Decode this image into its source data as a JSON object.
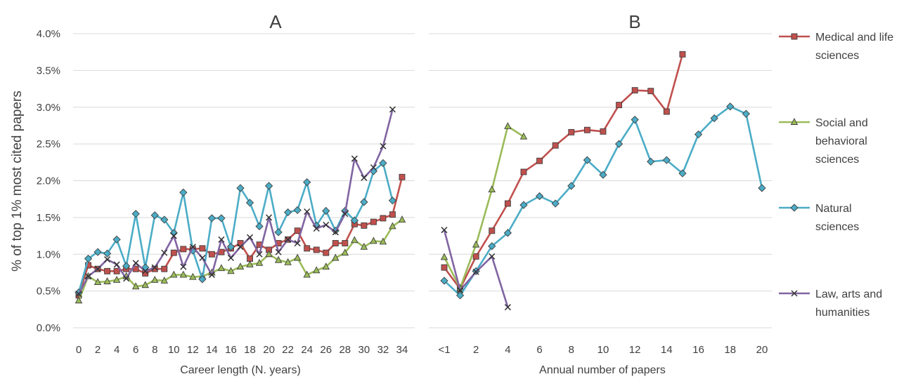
{
  "y_axis_label": "% of top 1% most cited papers",
  "y_ticks": [
    "0.0%",
    "0.5%",
    "1.0%",
    "1.5%",
    "2.0%",
    "2.5%",
    "3.0%",
    "3.5%",
    "4.0%"
  ],
  "legend": [
    {
      "lines": [
        "Medical and life",
        "sciences"
      ]
    },
    {
      "lines": [
        "Social and",
        "behavioral",
        "sciences"
      ]
    },
    {
      "lines": [
        "Natural",
        "sciences"
      ]
    },
    {
      "lines": [
        "Law, arts and",
        "humanities"
      ]
    }
  ],
  "chart_data": [
    {
      "type": "line",
      "title": "A",
      "xlabel": "Career length (N. years)",
      "ylabel": "% of top 1% most cited papers",
      "ylim": [
        0,
        4
      ],
      "xlim": [
        0,
        34
      ],
      "x_tick_labels": [
        "0",
        "2",
        "4",
        "6",
        "8",
        "10",
        "12",
        "14",
        "16",
        "18",
        "20",
        "22",
        "24",
        "26",
        "28",
        "30",
        "32",
        "34"
      ],
      "x": [
        0,
        1,
        2,
        3,
        4,
        5,
        6,
        7,
        8,
        9,
        10,
        11,
        12,
        13,
        14,
        15,
        16,
        17,
        18,
        19,
        20,
        21,
        22,
        23,
        24,
        25,
        26,
        27,
        28,
        29,
        30,
        31,
        32,
        33,
        34
      ],
      "series": [
        {
          "name": "Medical and life sciences",
          "color": "#c0504d",
          "marker": "square",
          "values": [
            0.44,
            0.85,
            0.8,
            0.77,
            0.77,
            0.8,
            0.8,
            0.74,
            0.8,
            0.8,
            1.02,
            1.07,
            1.07,
            1.08,
            1.0,
            1.03,
            1.08,
            1.15,
            0.94,
            1.13,
            1.06,
            1.15,
            1.2,
            1.32,
            1.08,
            1.06,
            1.02,
            1.15,
            1.15,
            1.41,
            1.39,
            1.44,
            1.49,
            1.54,
            2.05
          ]
        },
        {
          "name": "Social and behavioral sciences",
          "color": "#9bbb59",
          "marker": "triangle",
          "values": [
            0.37,
            0.7,
            0.62,
            0.63,
            0.65,
            0.7,
            0.56,
            0.58,
            0.65,
            0.64,
            0.72,
            0.72,
            0.69,
            0.7,
            0.75,
            0.81,
            0.77,
            0.83,
            0.86,
            0.88,
            1.0,
            0.92,
            0.89,
            0.95,
            0.72,
            0.78,
            0.83,
            0.95,
            1.02,
            1.19,
            1.1,
            1.18,
            1.17,
            1.38,
            1.47
          ]
        },
        {
          "name": "Natural sciences",
          "color": "#4bacc6",
          "marker": "diamond",
          "values": [
            0.48,
            0.94,
            1.03,
            1.01,
            1.2,
            0.84,
            1.55,
            0.82,
            1.53,
            1.47,
            1.29,
            1.84,
            1.05,
            0.66,
            1.49,
            1.49,
            1.1,
            1.9,
            1.7,
            1.38,
            1.93,
            1.3,
            1.57,
            1.6,
            1.98,
            1.39,
            1.59,
            1.32,
            1.59,
            1.46,
            1.71,
            2.13,
            2.24,
            1.73,
            null
          ]
        },
        {
          "name": "Law, arts and humanities",
          "color": "#8064a2",
          "marker": "x",
          "values": [
            0.46,
            0.7,
            0.8,
            0.93,
            0.86,
            0.67,
            0.88,
            0.77,
            0.82,
            1.02,
            1.25,
            0.83,
            1.1,
            0.95,
            0.72,
            1.2,
            0.95,
            1.1,
            1.23,
            1.0,
            1.5,
            1.03,
            1.2,
            1.15,
            1.58,
            1.35,
            1.4,
            1.3,
            1.55,
            2.3,
            2.04,
            2.18,
            2.47,
            2.97,
            null
          ]
        }
      ]
    },
    {
      "type": "line",
      "title": "B",
      "xlabel": "Annual number of papers",
      "ylabel": "",
      "ylim": [
        0,
        4
      ],
      "xlim": [
        0,
        20
      ],
      "x_tick_labels": [
        "<1",
        "2",
        "4",
        "6",
        "8",
        "10",
        "12",
        "14",
        "16",
        "18",
        "20"
      ],
      "x_tick_positions": [
        0,
        2,
        4,
        6,
        8,
        10,
        12,
        14,
        16,
        18,
        20
      ],
      "series": [
        {
          "name": "Medical and life sciences",
          "color": "#c0504d",
          "marker": "square",
          "x": [
            0,
            1,
            2,
            3,
            4,
            5,
            6,
            7,
            8,
            9,
            10,
            11,
            12,
            13,
            14,
            15
          ],
          "values": [
            0.82,
            0.53,
            0.97,
            1.32,
            1.69,
            2.12,
            2.27,
            2.48,
            2.66,
            2.69,
            2.67,
            3.03,
            3.23,
            3.22,
            2.94,
            3.72
          ]
        },
        {
          "name": "Social and behavioral sciences",
          "color": "#9bbb59",
          "marker": "triangle",
          "x": [
            0,
            1,
            2,
            3,
            4,
            5
          ],
          "values": [
            0.96,
            0.54,
            1.13,
            1.88,
            2.74,
            2.6
          ]
        },
        {
          "name": "Natural sciences",
          "color": "#4bacc6",
          "marker": "diamond",
          "x": [
            0,
            1,
            2,
            3,
            4,
            5,
            6,
            7,
            8,
            9,
            10,
            11,
            12,
            13,
            14,
            15,
            16,
            17,
            18,
            19,
            20
          ],
          "values": [
            0.64,
            0.44,
            0.77,
            1.11,
            1.29,
            1.67,
            1.79,
            1.69,
            1.93,
            2.28,
            2.08,
            2.5,
            2.83,
            2.26,
            2.28,
            2.1,
            2.63,
            2.85,
            3.01,
            2.91,
            1.9
          ]
        },
        {
          "name": "Law, arts and humanities",
          "color": "#8064a2",
          "marker": "x",
          "x": [
            0,
            1,
            2,
            3,
            4
          ],
          "values": [
            1.33,
            0.51,
            0.76,
            0.97,
            0.28
          ]
        }
      ]
    }
  ]
}
